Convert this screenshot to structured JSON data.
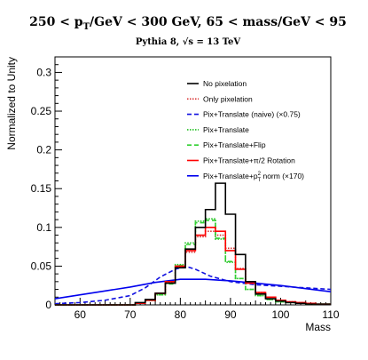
{
  "chart_data": {
    "type": "line",
    "title": "250 < p_T/GeV < 300 GeV, 65 < mass/GeV < 95",
    "title_parts": {
      "a": "250 < p",
      "sub": "T",
      "b": "/GeV < 300 GeV, 65 < mass/GeV < 95"
    },
    "subtitle": "Pythia 8,  √s = 13 TeV",
    "xlabel": "Mass",
    "ylabel": "Normalized to Unity",
    "xlim": [
      55,
      110
    ],
    "ylim": [
      0,
      0.32
    ],
    "x_ticks": [
      60,
      70,
      80,
      90,
      100,
      110
    ],
    "y_ticks": [
      0,
      0.05,
      0.1,
      0.15,
      0.2,
      0.25,
      0.3
    ],
    "y_tick_labels": [
      "0",
      "0.05",
      "0.1",
      "0.15",
      "0.2",
      "0.25",
      "0.3"
    ],
    "legend_position": "top-right",
    "bin_width": 2,
    "bin_start": 55,
    "series": [
      {
        "name": "No pixelation",
        "color": "#000000",
        "style": "solid",
        "histogram": true,
        "values": [
          0,
          0,
          0,
          0,
          0,
          0,
          0,
          0,
          0.003,
          0.007,
          0.015,
          0.028,
          0.048,
          0.072,
          0.1,
          0.123,
          0.157,
          0.117,
          0.065,
          0.03,
          0.014,
          0.008,
          0.005,
          0.003,
          0.002,
          0.001,
          0.001,
          0.001
        ]
      },
      {
        "name": "Only pixelation",
        "color": "#d93030",
        "style": "dotted",
        "histogram": true,
        "values": [
          0,
          0,
          0,
          0,
          0,
          0,
          0,
          0,
          0.002,
          0.006,
          0.014,
          0.029,
          0.049,
          0.068,
          0.088,
          0.095,
          0.09,
          0.073,
          0.047,
          0.028,
          0.016,
          0.01,
          0.006,
          0.004,
          0.003,
          0.002,
          0.001,
          0.001
        ]
      },
      {
        "name": "Pix+Translate (naive) (×0.75)",
        "color": "#1010e0",
        "style": "dashed",
        "histogram": false,
        "x": [
          55,
          60,
          65,
          70,
          73,
          76,
          79,
          81,
          83,
          86,
          90,
          95,
          100,
          105,
          110
        ],
        "values": [
          0.0015,
          0.003,
          0.006,
          0.012,
          0.022,
          0.036,
          0.046,
          0.05,
          0.046,
          0.037,
          0.03,
          0.026,
          0.024,
          0.022,
          0.02
        ]
      },
      {
        "name": "Pix+Translate",
        "color": "#20c020",
        "style": "dotted",
        "histogram": true,
        "values": [
          0,
          0,
          0,
          0,
          0,
          0,
          0,
          0,
          0.002,
          0.006,
          0.013,
          0.028,
          0.052,
          0.08,
          0.108,
          0.111,
          0.085,
          0.055,
          0.034,
          0.02,
          0.012,
          0.007,
          0.004,
          0.003,
          0.002,
          0.001,
          0.001,
          0.001
        ]
      },
      {
        "name": "Pix+Translate+Flip",
        "color": "#30d030",
        "style": "dashed",
        "histogram": true,
        "values": [
          0,
          0,
          0,
          0,
          0,
          0,
          0,
          0,
          0.002,
          0.006,
          0.013,
          0.027,
          0.051,
          0.078,
          0.106,
          0.109,
          0.086,
          0.056,
          0.034,
          0.02,
          0.012,
          0.007,
          0.004,
          0.003,
          0.002,
          0.001,
          0.001,
          0.001
        ]
      },
      {
        "name": "Pix+Translate+π/2 Rotation",
        "color": "#ff0000",
        "style": "solid",
        "histogram": true,
        "values": [
          0,
          0,
          0,
          0,
          0,
          0,
          0,
          0,
          0.002,
          0.006,
          0.015,
          0.03,
          0.05,
          0.07,
          0.09,
          0.1,
          0.095,
          0.07,
          0.046,
          0.028,
          0.016,
          0.01,
          0.006,
          0.004,
          0.003,
          0.002,
          0.001,
          0.001
        ]
      },
      {
        "name": "Pix+Translate+p_T^2 norm (×170)",
        "name_parts": {
          "a": "Pix+Translate+p",
          "sub": "T",
          "sup": "2",
          "b": " norm (×170)"
        },
        "color": "#0000ee",
        "style": "solid",
        "histogram": false,
        "x": [
          55,
          60,
          65,
          70,
          75,
          80,
          85,
          90,
          95,
          100,
          105,
          110
        ],
        "values": [
          0.008,
          0.013,
          0.018,
          0.023,
          0.029,
          0.033,
          0.033,
          0.031,
          0.028,
          0.025,
          0.021,
          0.017
        ]
      }
    ]
  }
}
